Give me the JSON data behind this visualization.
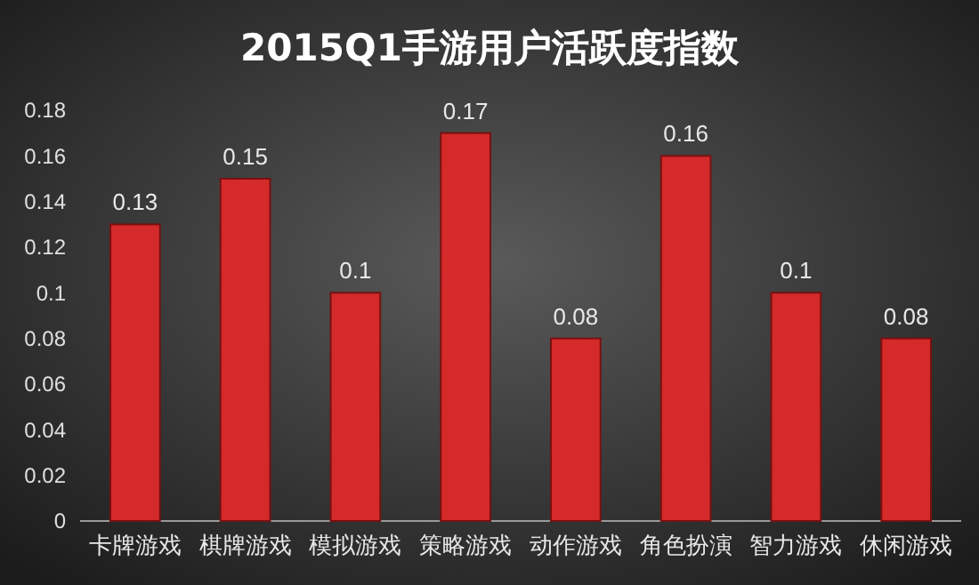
{
  "chart_data": {
    "type": "bar",
    "title": "2015Q1手游用户活跃度指数",
    "categories": [
      "卡牌游戏",
      "棋牌游戏",
      "模拟游戏",
      "策略游戏",
      "动作游戏",
      "角色扮演",
      "智力游戏",
      "休闲游戏"
    ],
    "values": [
      0.13,
      0.15,
      0.1,
      0.17,
      0.08,
      0.16,
      0.1,
      0.08
    ],
    "color": "#d42a2a",
    "ylim": [
      0,
      0.18
    ],
    "yticks": [
      0,
      0.02,
      0.04,
      0.06,
      0.08,
      0.1,
      0.12,
      0.14,
      0.16,
      0.18
    ],
    "data_labels": true
  }
}
